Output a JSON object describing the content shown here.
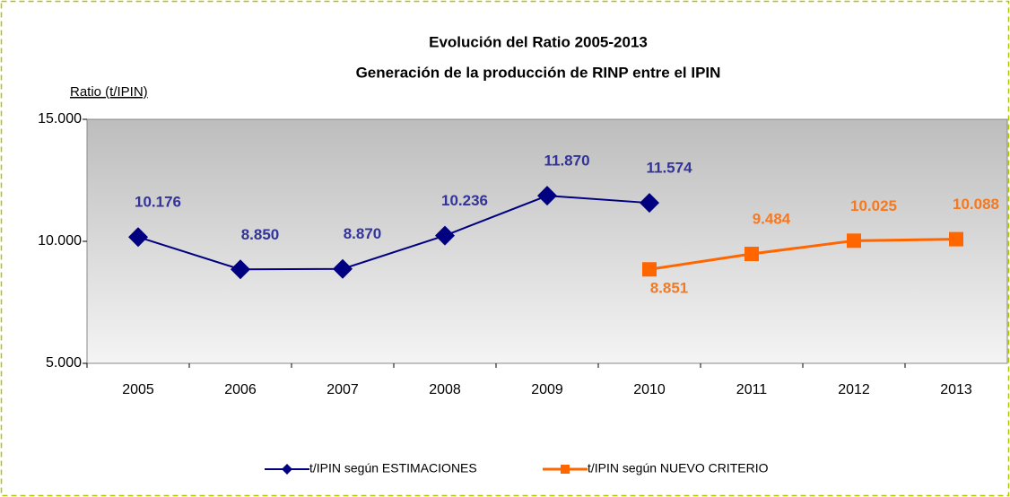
{
  "chart_data": {
    "type": "line",
    "title": "Evolución del Ratio 2005-2013",
    "subtitle": "Generación de la producción de RINP entre el IPIN",
    "y_label": "Ratio (t/IPIN)",
    "categories": [
      "2005",
      "2006",
      "2007",
      "2008",
      "2009",
      "2010",
      "2011",
      "2012",
      "2013"
    ],
    "series": [
      {
        "name": "t/IPIN según ESTIMACIONES",
        "color": "#000080",
        "label_color": "#333399",
        "marker": "diamond",
        "values": [
          10176,
          8850,
          8870,
          10236,
          11870,
          11574,
          null,
          null,
          null
        ],
        "value_labels": [
          "10.176",
          "8.850",
          "8.870",
          "10.236",
          "11.870",
          "11.574",
          null,
          null,
          null
        ]
      },
      {
        "name": "t/IPIN según NUEVO CRITERIO",
        "color": "#ff6600",
        "label_color": "#f47920",
        "marker": "square",
        "values": [
          null,
          null,
          null,
          null,
          null,
          8851,
          9484,
          10025,
          10088
        ],
        "value_labels": [
          null,
          null,
          null,
          null,
          null,
          "8.851",
          "9.484",
          "10.025",
          "10.088"
        ]
      }
    ],
    "ylim": [
      5000,
      15000
    ],
    "yticks": [
      {
        "value": 5000,
        "label": "5.000"
      },
      {
        "value": 10000,
        "label": "10.000"
      },
      {
        "value": 15000,
        "label": "15.000"
      }
    ],
    "grid": false,
    "legend": "bottom"
  }
}
